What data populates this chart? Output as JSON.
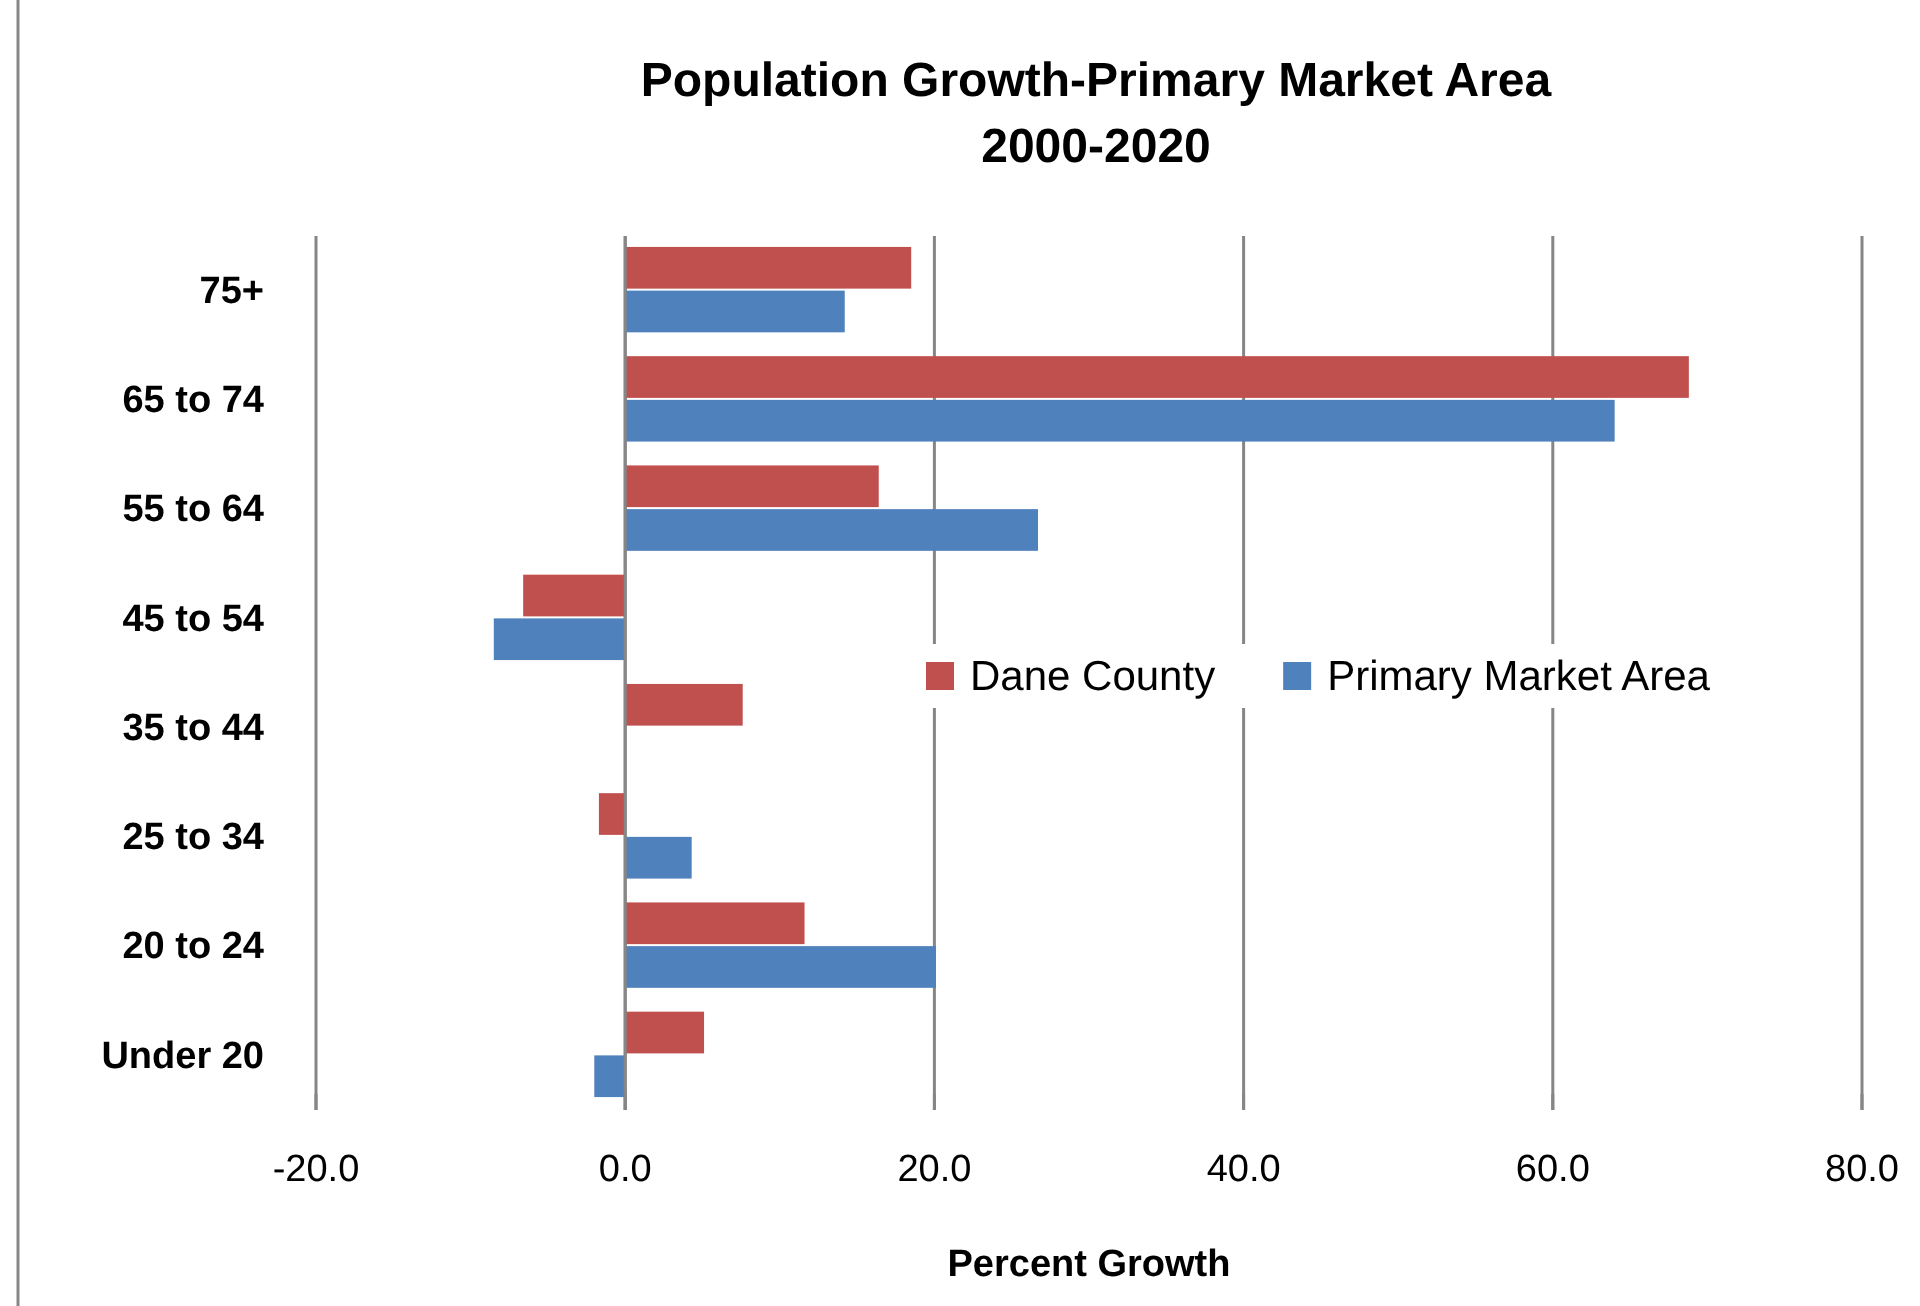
{
  "chart_data": {
    "type": "bar",
    "orientation": "horizontal",
    "title": "Population Growth-Primary Market Area\n2000-2020",
    "xlabel": "Percent Growth",
    "categories": [
      "75+",
      "65 to 74",
      "55 to 64",
      "45 to 54",
      "35 to 44",
      "25 to 34",
      "20 to 24",
      "Under 20"
    ],
    "series": [
      {
        "name": "Dane County",
        "color": "#c0504d",
        "values": [
          18.5,
          68.8,
          16.4,
          -6.6,
          7.6,
          -1.7,
          11.6,
          5.1
        ]
      },
      {
        "name": "Primary Market Area",
        "color": "#4f81bd",
        "values": [
          14.2,
          64.0,
          26.7,
          -8.5,
          0,
          4.3,
          20.1,
          -2.0
        ]
      }
    ],
    "xlim": [
      -20,
      80
    ],
    "xticks": [
      {
        "value": -20,
        "label": "-20.0"
      },
      {
        "value": 0,
        "label": "0.0"
      },
      {
        "value": 20,
        "label": "20.0"
      },
      {
        "value": 40,
        "label": "40.0"
      },
      {
        "value": 60,
        "label": "60.0"
      },
      {
        "value": 80,
        "label": "80.0"
      }
    ],
    "grid": "x",
    "legend": "right"
  }
}
